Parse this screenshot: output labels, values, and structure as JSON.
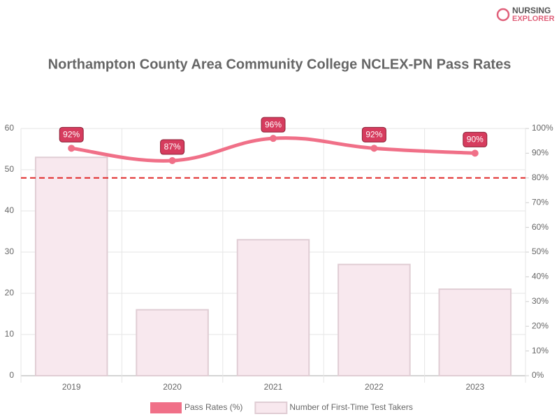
{
  "logo": [
    "NURSING",
    "EXPLORER"
  ],
  "chart_data": {
    "type": "bar-line",
    "title": "Northampton County Area Community College NCLEX-PN Pass Rates",
    "categories": [
      "2019",
      "2020",
      "2021",
      "2022",
      "2023"
    ],
    "series": [
      {
        "name": "Pass Rates (%)",
        "color": "#f07088",
        "type": "line",
        "axis": "y2",
        "values": [
          92,
          87,
          96,
          92,
          90
        ],
        "value_labels": [
          "92%",
          "87%",
          "96%",
          "92%",
          "90%"
        ]
      },
      {
        "name": "Number of First-Time Test Takers",
        "color": "#f8e8ee",
        "type": "bar",
        "axis": "y",
        "values": [
          53,
          16,
          33,
          27,
          21
        ]
      }
    ],
    "ylim": [
      0,
      60
    ],
    "yticks": [
      0,
      10,
      20,
      30,
      40,
      50,
      60
    ],
    "y2lim": [
      0,
      100
    ],
    "y2ticks": [
      {
        "value": 0,
        "label": "0%"
      },
      {
        "value": 10,
        "label": "10%"
      },
      {
        "value": 20,
        "label": "20%"
      },
      {
        "value": 30,
        "label": "30%"
      },
      {
        "value": 40,
        "label": "40%"
      },
      {
        "value": 50,
        "label": "50%"
      },
      {
        "value": 60,
        "label": "60%"
      },
      {
        "value": 70,
        "label": "70%"
      },
      {
        "value": 80,
        "label": "80%"
      },
      {
        "value": 90,
        "label": "90%"
      },
      {
        "value": 100,
        "label": "100%"
      }
    ],
    "threshold": {
      "value": 80,
      "axis": "y2",
      "color": "#e02828"
    },
    "grid": true
  }
}
